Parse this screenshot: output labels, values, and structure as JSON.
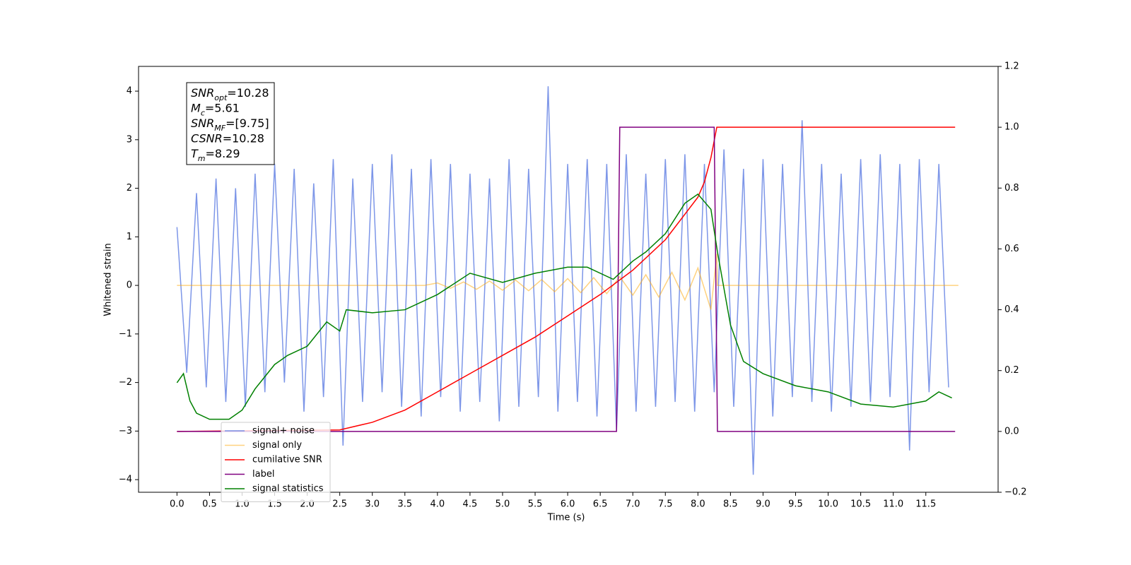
{
  "chart_data": {
    "type": "line",
    "xlabel": "Time (s)",
    "ylabel": "Whitened strain",
    "xlim": [
      -0.59,
      12.61
    ],
    "ylim": [
      -4.26,
      4.51
    ],
    "y2lim": [
      -0.2,
      1.2
    ],
    "xticks": [
      {
        "value": 0,
        "label": "0.0"
      },
      0.5,
      {
        "value": 1,
        "label": "1.0"
      },
      1.5,
      {
        "value": 2,
        "label": "2.0"
      },
      2.5,
      {
        "value": 3,
        "label": "3.0"
      },
      3.5,
      {
        "value": 4,
        "label": "4.0"
      },
      4.5,
      {
        "value": 5,
        "label": "5.0"
      },
      5.5,
      {
        "value": 6,
        "label": "6.0"
      },
      6.5,
      {
        "value": 7,
        "label": "7.0"
      },
      7.5,
      {
        "value": 8,
        "label": "8.0"
      },
      8.5,
      {
        "value": 9,
        "label": "9.0"
      },
      9.5,
      {
        "value": 10,
        "label": "10.0"
      },
      10.5,
      {
        "value": 11,
        "label": "11.0"
      },
      11.5
    ],
    "yticks": [
      {
        "value": -4,
        "label": "−4"
      },
      {
        "value": -3,
        "label": "−3"
      },
      {
        "value": -2,
        "label": "−2"
      },
      {
        "value": -1,
        "label": "−1"
      },
      0,
      1,
      2,
      3,
      4
    ],
    "y2ticks": [
      {
        "value": -0.2,
        "label": "−0.2"
      },
      {
        "value": 0,
        "label": "0.0"
      },
      0.2,
      0.4,
      0.6,
      0.8,
      {
        "value": 1,
        "label": "1.0"
      },
      1.2
    ],
    "legend": "lower left",
    "annotations": [
      {
        "main": "SNR",
        "sub": "opt",
        "rest": "=10.28"
      },
      {
        "main": "M",
        "sub": "c",
        "rest": "=5.61"
      },
      {
        "main": "SNR",
        "sub": "MF",
        "rest": "=[9.75]"
      },
      {
        "main": "CSNR",
        "rest": "=10.28"
      },
      {
        "main": "T",
        "sub": "m",
        "rest": "=8.29"
      }
    ],
    "series": [
      {
        "name": "signal+ noise",
        "color": "#6f8be6",
        "opacity": 0.9,
        "x": [
          0,
          0.15,
          0.3,
          0.45,
          0.6,
          0.75,
          0.9,
          1.05,
          1.2,
          1.35,
          1.5,
          1.65,
          1.8,
          1.95,
          2.1,
          2.25,
          2.4,
          2.55,
          2.7,
          2.85,
          3,
          3.15,
          3.3,
          3.45,
          3.6,
          3.75,
          3.9,
          4.05,
          4.2,
          4.35,
          4.5,
          4.65,
          4.8,
          4.95,
          5.1,
          5.25,
          5.4,
          5.55,
          5.7,
          5.85,
          6,
          6.15,
          6.3,
          6.45,
          6.6,
          6.75,
          6.9,
          7.05,
          7.2,
          7.35,
          7.5,
          7.65,
          7.8,
          7.95,
          8.1,
          8.25,
          8.4,
          8.55,
          8.7,
          8.85,
          9,
          9.15,
          9.3,
          9.45,
          9.6,
          9.75,
          9.9,
          10.05,
          10.2,
          10.35,
          10.5,
          10.65,
          10.8,
          10.95,
          11.1,
          11.25,
          11.4,
          11.55,
          11.7,
          11.85
        ],
        "values": [
          1.2,
          -1.8,
          1.9,
          -2.1,
          2.2,
          -2.4,
          2.0,
          -2.5,
          2.3,
          -2.2,
          2.5,
          -2.0,
          2.4,
          -2.6,
          2.1,
          -2.3,
          2.6,
          -3.3,
          2.2,
          -2.4,
          2.5,
          -2.2,
          2.7,
          -2.5,
          2.4,
          -2.7,
          2.6,
          -2.3,
          2.5,
          -2.6,
          2.3,
          -2.4,
          2.2,
          -2.8,
          2.6,
          -2.5,
          2.4,
          -2.3,
          4.1,
          -2.6,
          2.5,
          -2.4,
          2.6,
          -2.7,
          2.5,
          -3.0,
          2.7,
          -2.6,
          2.3,
          -2.5,
          2.6,
          -2.4,
          2.7,
          -2.6,
          2.5,
          -2.2,
          2.8,
          -2.5,
          2.4,
          -3.9,
          2.6,
          -2.7,
          2.5,
          -2.3,
          3.4,
          -2.4,
          2.5,
          -2.6,
          2.3,
          -2.5,
          2.6,
          -2.4,
          2.7,
          -2.3,
          2.5,
          -3.4,
          2.6,
          -2.2,
          2.5,
          -2.1
        ]
      },
      {
        "name": "signal only",
        "color": "#ffa500",
        "opacity": 0.5,
        "x": [
          0,
          3.8,
          4.0,
          4.2,
          4.4,
          4.6,
          4.8,
          5.0,
          5.2,
          5.4,
          5.6,
          5.8,
          6.0,
          6.2,
          6.4,
          6.6,
          6.8,
          7.0,
          7.2,
          7.4,
          7.6,
          7.8,
          8.0,
          8.2,
          8.29,
          8.3,
          12
        ],
        "values": [
          0,
          0,
          0.05,
          -0.06,
          0.07,
          -0.08,
          0.09,
          -0.1,
          0.11,
          -0.11,
          0.12,
          -0.13,
          0.14,
          -0.15,
          0.16,
          -0.17,
          0.18,
          -0.2,
          0.22,
          -0.24,
          0.27,
          -0.3,
          0.36,
          -0.5,
          0.65,
          0,
          0
        ]
      },
      {
        "name": "cumilative SNR",
        "color": "#ff0000",
        "opacity": 1,
        "axis": "y2",
        "x": [
          0,
          2.5,
          3,
          3.5,
          4,
          4.5,
          5,
          5.5,
          6,
          6.5,
          7,
          7.5,
          8,
          8.1,
          8.2,
          8.29,
          11.95
        ],
        "values": [
          0,
          0.005,
          0.03,
          0.07,
          0.13,
          0.19,
          0.25,
          0.31,
          0.38,
          0.45,
          0.53,
          0.63,
          0.77,
          0.82,
          0.9,
          1,
          1
        ]
      },
      {
        "name": "label",
        "color": "#800080",
        "opacity": 1,
        "axis": "y2",
        "x": [
          0,
          6.75,
          6.8,
          8.25,
          8.3,
          11.95
        ],
        "values": [
          0,
          0,
          1,
          1,
          0,
          0
        ]
      },
      {
        "name": "signal statistics",
        "color": "#008000",
        "opacity": 1,
        "axis": "y2",
        "x": [
          0,
          0.1,
          0.2,
          0.3,
          0.5,
          0.8,
          1.0,
          1.2,
          1.5,
          1.7,
          2.0,
          2.3,
          2.5,
          2.6,
          3.0,
          3.5,
          3.8,
          4.0,
          4.5,
          5.0,
          5.5,
          6.0,
          6.3,
          6.7,
          7.0,
          7.2,
          7.5,
          7.8,
          8.0,
          8.2,
          8.3,
          8.5,
          8.7,
          9.0,
          9.5,
          10.0,
          10.5,
          11.0,
          11.5,
          11.7,
          11.9
        ],
        "values": [
          0.16,
          0.19,
          0.1,
          0.06,
          0.04,
          0.04,
          0.07,
          0.14,
          0.22,
          0.25,
          0.28,
          0.36,
          0.33,
          0.4,
          0.39,
          0.4,
          0.43,
          0.45,
          0.52,
          0.49,
          0.52,
          0.54,
          0.54,
          0.5,
          0.56,
          0.59,
          0.65,
          0.75,
          0.78,
          0.73,
          0.59,
          0.35,
          0.23,
          0.19,
          0.15,
          0.13,
          0.09,
          0.08,
          0.1,
          0.13,
          0.11
        ]
      }
    ]
  }
}
